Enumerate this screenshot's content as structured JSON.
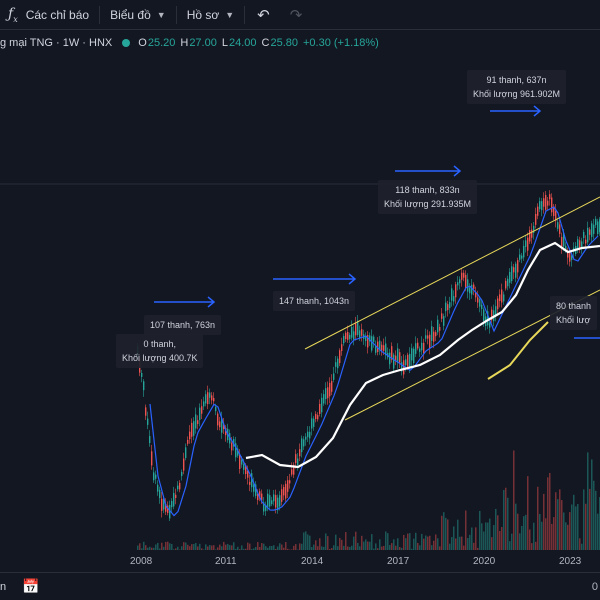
{
  "toolbar": {
    "indicators_icon": "fx-icon",
    "indicators_label": "Các chỉ báo",
    "charts_label": "Biểu đồ",
    "profile_label": "Hồ sơ",
    "undo_icon": "undo-icon",
    "redo_icon": "redo-icon"
  },
  "legend": {
    "title": "g mại TNG · 1W · HNX",
    "open_key": "O",
    "open": "25.20",
    "high_key": "H",
    "high": "27.00",
    "low_key": "L",
    "low": "24.00",
    "close_key": "C",
    "close": "25.80",
    "change": "+0.30 (+1.18%)",
    "up_color": "#26a69a"
  },
  "annotations": [
    {
      "line1": "91 thanh, 637n",
      "line2": "Khối lượng 961.902M"
    },
    {
      "line1": "118 thanh, 833n",
      "line2": "Khối lượng 291.935M"
    },
    {
      "line1": "147 thanh, 1043n",
      "line2": ""
    },
    {
      "line1": "107 thanh, 763n",
      "line2": ""
    },
    {
      "line1": "0 thanh,",
      "line2": "Khối lượng 400.7K"
    },
    {
      "line1": "80 thanh",
      "line2": "Khối lượ"
    }
  ],
  "x_axis": {
    "years": [
      "2008",
      "2011",
      "2014",
      "2017",
      "2020",
      "2023"
    ],
    "partial_label": "0"
  },
  "bottombar": {
    "left_text": "n",
    "calendar_icon": "calendar-icon"
  },
  "colors": {
    "background": "#131722",
    "up": "#26a69a",
    "down": "#ef5350",
    "channel": "#e8d85a",
    "arrow": "#2962ff",
    "ma_white": "#ffffff",
    "ma_blue": "#2962ff"
  }
}
